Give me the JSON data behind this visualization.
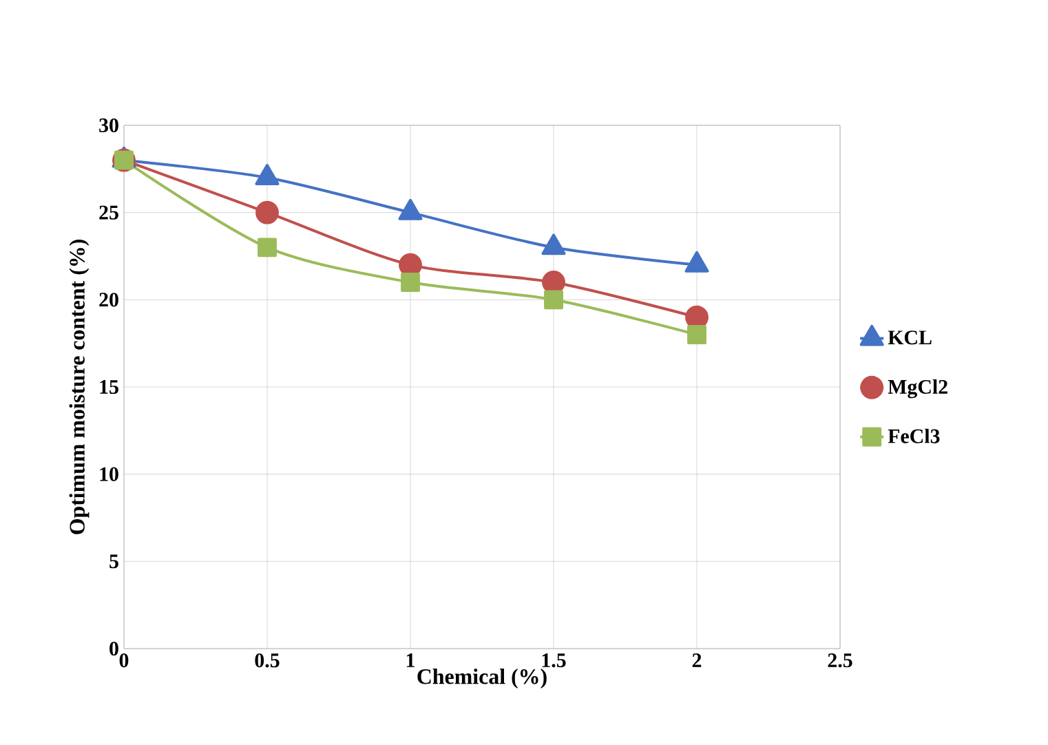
{
  "chart_data": {
    "type": "line",
    "xlabel": "Chemical (%)",
    "ylabel": "Optimum moisture content (%)",
    "x": [
      0,
      0.5,
      1,
      1.5,
      2
    ],
    "series": [
      {
        "name": "KCL",
        "color": "#4472c4",
        "marker": "triangle",
        "values": [
          28,
          27,
          25,
          23,
          22
        ]
      },
      {
        "name": "MgCl2",
        "color": "#c0504d",
        "marker": "circle",
        "values": [
          28,
          25,
          22,
          21,
          19
        ]
      },
      {
        "name": "FeCl3",
        "color": "#9bbb59",
        "marker": "square",
        "values": [
          28,
          23,
          21,
          20,
          18
        ]
      }
    ],
    "xlim": [
      0,
      2.5
    ],
    "xticks": [
      0,
      0.5,
      1,
      1.5,
      2,
      2.5
    ],
    "ylim": [
      0,
      30
    ],
    "yticks": [
      0,
      5,
      10,
      15,
      20,
      25,
      30
    ],
    "grid": true,
    "legend": "right",
    "line_style": "solid"
  }
}
